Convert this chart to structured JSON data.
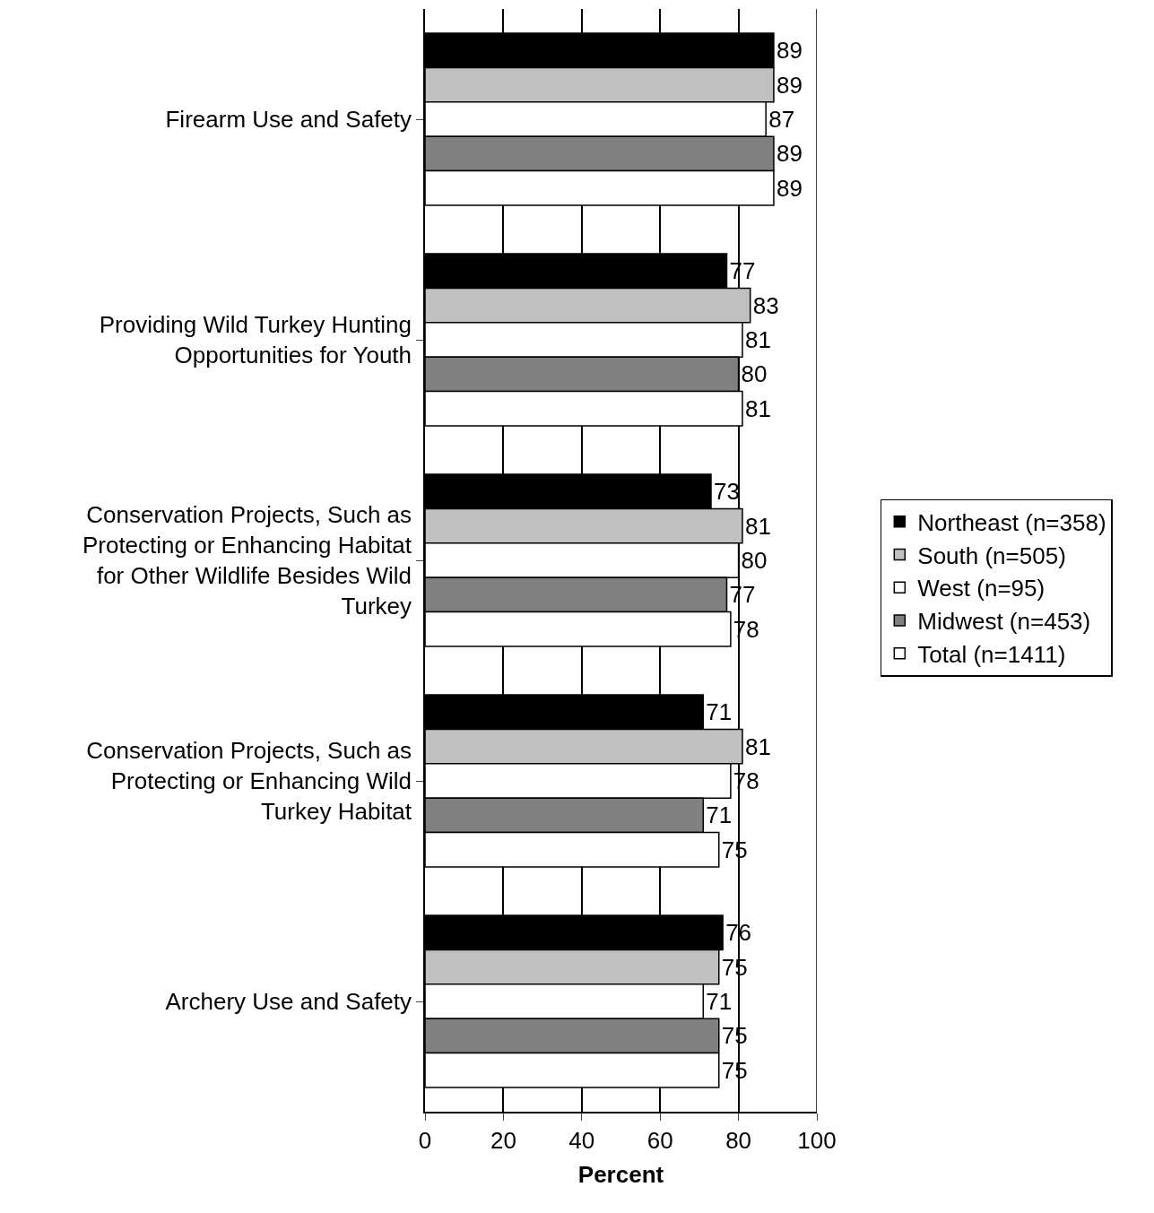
{
  "chart_data": {
    "type": "bar",
    "orientation": "horizontal",
    "xlabel": "Percent",
    "categories": [
      "Firearm Use and Safety",
      "Providing Wild Turkey Hunting Opportunities for Youth",
      "Conservation Projects, Such as Protecting or Enhancing Habitat for Other Wildlife Besides Wild Turkey",
      "Conservation Projects, Such as Protecting or Enhancing Wild Turkey Habitat",
      "Archery Use and Safety"
    ],
    "series": [
      {
        "name": "Northeast (n=358)",
        "color": "#000000",
        "values": [
          89,
          77,
          73,
          71,
          76
        ]
      },
      {
        "name": "South (n=505)",
        "color": "#c0c0c0",
        "values": [
          89,
          83,
          81,
          81,
          75
        ]
      },
      {
        "name": "West (n=95)",
        "color": "#ffffff",
        "values": [
          87,
          81,
          80,
          78,
          71
        ]
      },
      {
        "name": "Midwest (n=453)",
        "color": "#808080",
        "values": [
          89,
          80,
          77,
          71,
          75
        ]
      },
      {
        "name": "Total (n=1411)",
        "color": "#ffffff",
        "values": [
          89,
          81,
          78,
          75,
          75
        ]
      }
    ],
    "xlim": [
      0,
      100
    ],
    "xticks": [
      0,
      20,
      40,
      60,
      80,
      100
    ],
    "grid": "x",
    "legend": "right",
    "data_labels": true
  }
}
